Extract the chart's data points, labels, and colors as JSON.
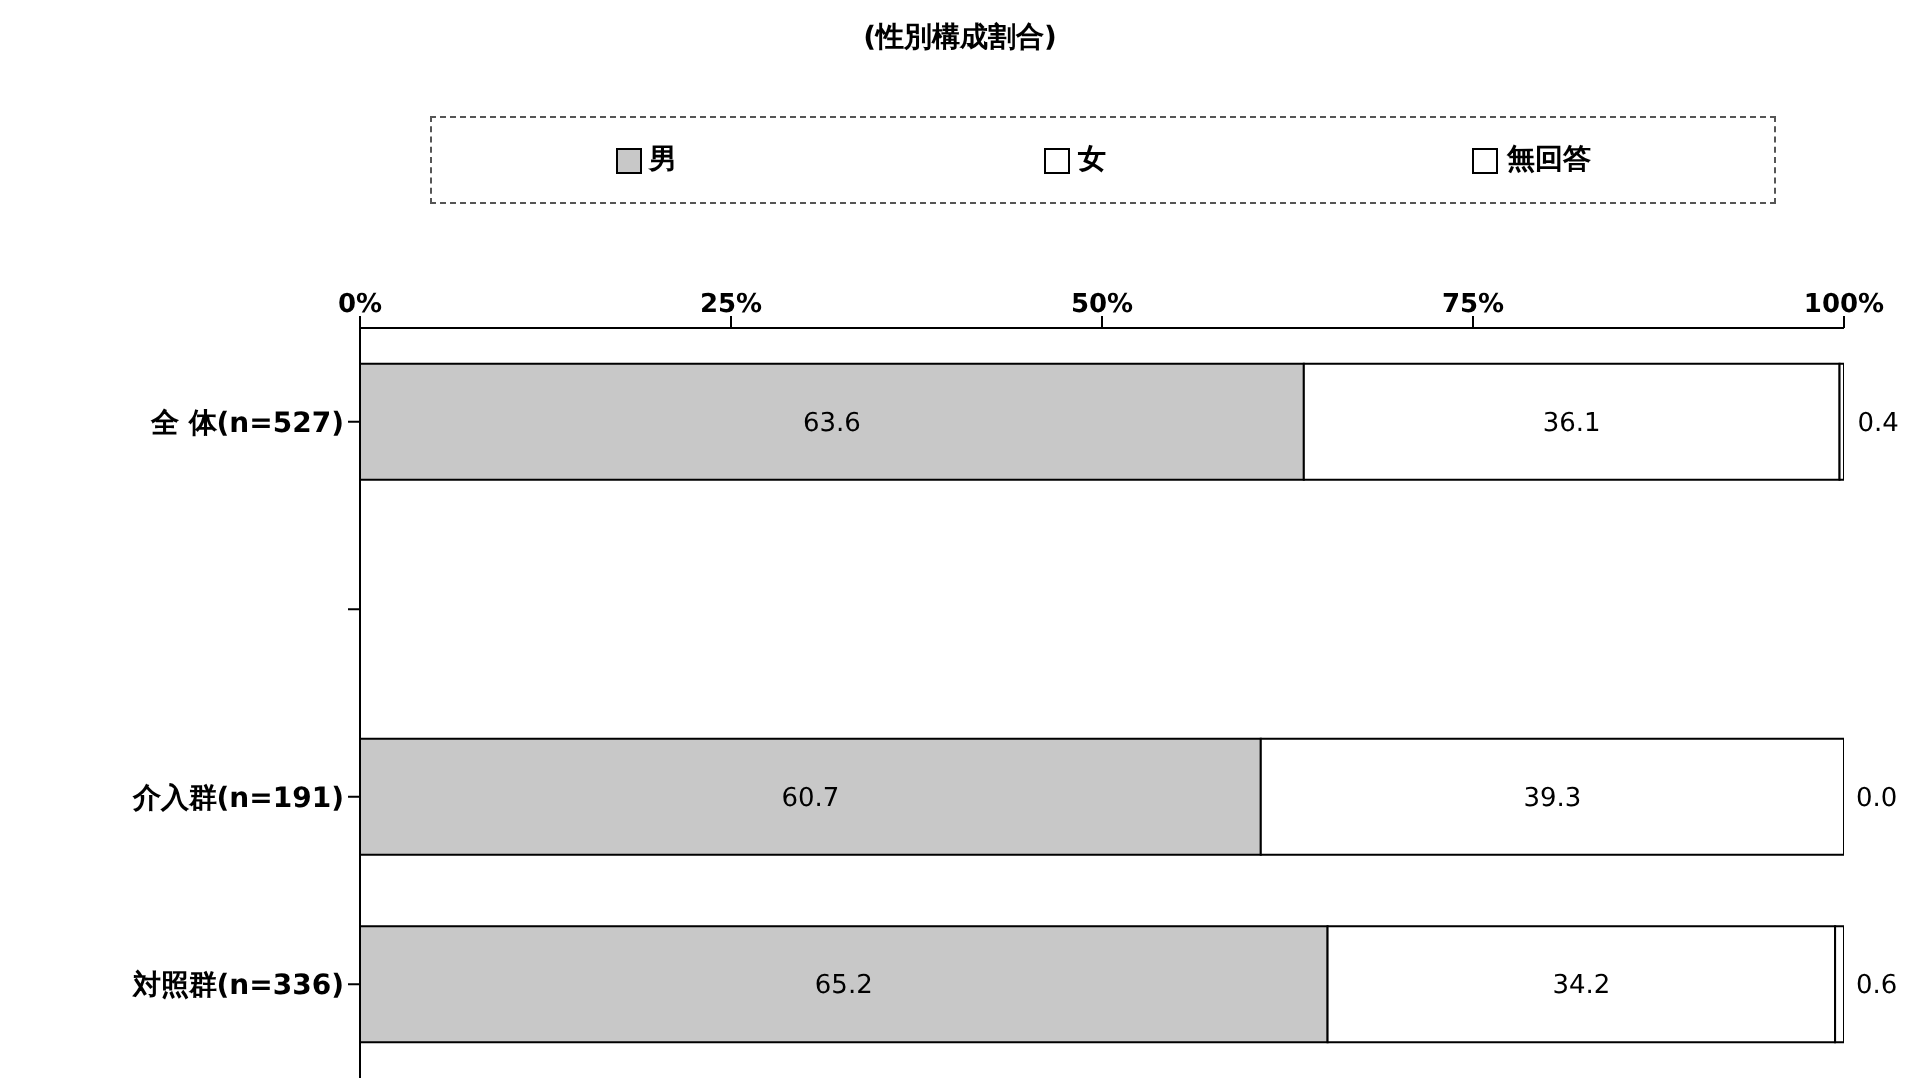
{
  "chart_data": {
    "type": "bar",
    "orientation": "horizontal",
    "stacked": true,
    "title": "(性別構成割合)",
    "categories": [
      "全 体(n=527)",
      null,
      "介入群(n=191)",
      "対照群(n=336)"
    ],
    "series": [
      {
        "name": "男",
        "color": "#c8c8c8",
        "values": [
          63.6,
          null,
          60.7,
          65.2
        ],
        "value_labels": [
          "63.6",
          null,
          "60.7",
          "65.2"
        ]
      },
      {
        "name": "女",
        "color": "#ffffff",
        "values": [
          36.1,
          null,
          39.3,
          34.2
        ],
        "value_labels": [
          "36.1",
          null,
          "39.3",
          "34.2"
        ]
      },
      {
        "name": "無回答",
        "color": "#ffffff",
        "values": [
          0.4,
          null,
          0.0,
          0.6
        ],
        "value_labels": [
          "0.4",
          null,
          "0.0",
          "0.6"
        ]
      }
    ],
    "xlim": [
      0,
      100
    ],
    "xticks": [
      {
        "value": 0,
        "label": "0%"
      },
      {
        "value": 25,
        "label": "25%"
      },
      {
        "value": 50,
        "label": "50%"
      },
      {
        "value": 75,
        "label": "75%"
      },
      {
        "value": 100,
        "label": "100%"
      }
    ],
    "legend": "top",
    "grid": false
  }
}
